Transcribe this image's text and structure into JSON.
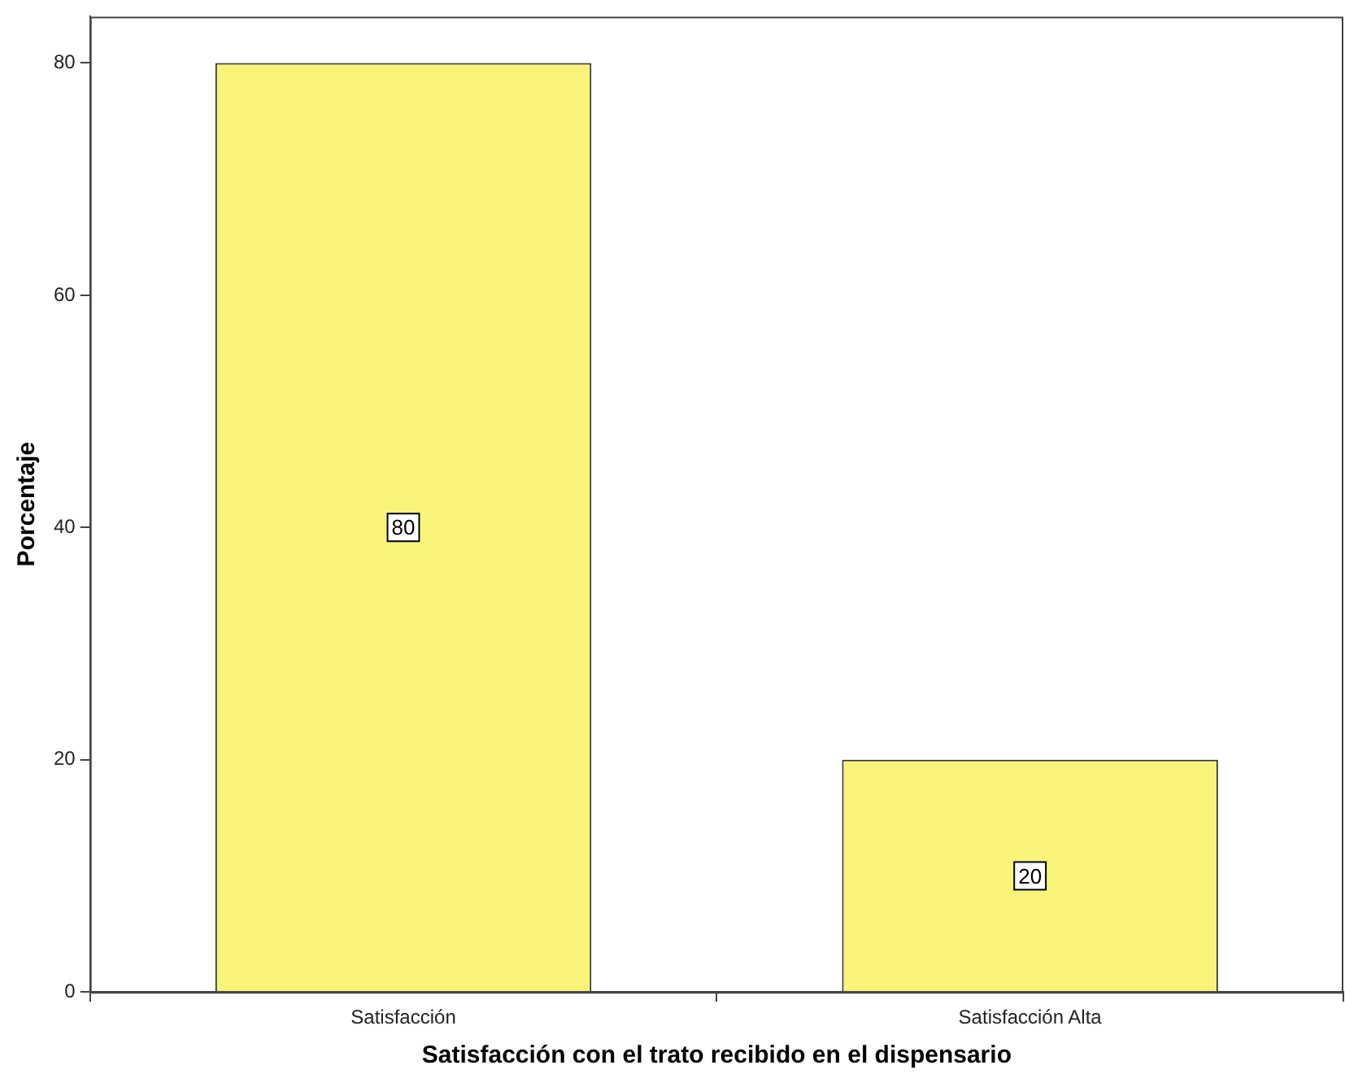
{
  "chart_data": {
    "type": "bar",
    "xlabel": "Satisfacción con el trato recibido en el dispensario",
    "ylabel": "Porcentaje",
    "categories": [
      "Satisfacción",
      "Satisfacción Alta"
    ],
    "values": [
      80,
      20
    ],
    "color": "#f8f47a",
    "ylim": [
      0,
      84
    ],
    "yticks": [
      0,
      20,
      40,
      60,
      80
    ],
    "grid": false,
    "legend": false,
    "data_labels": true
  }
}
